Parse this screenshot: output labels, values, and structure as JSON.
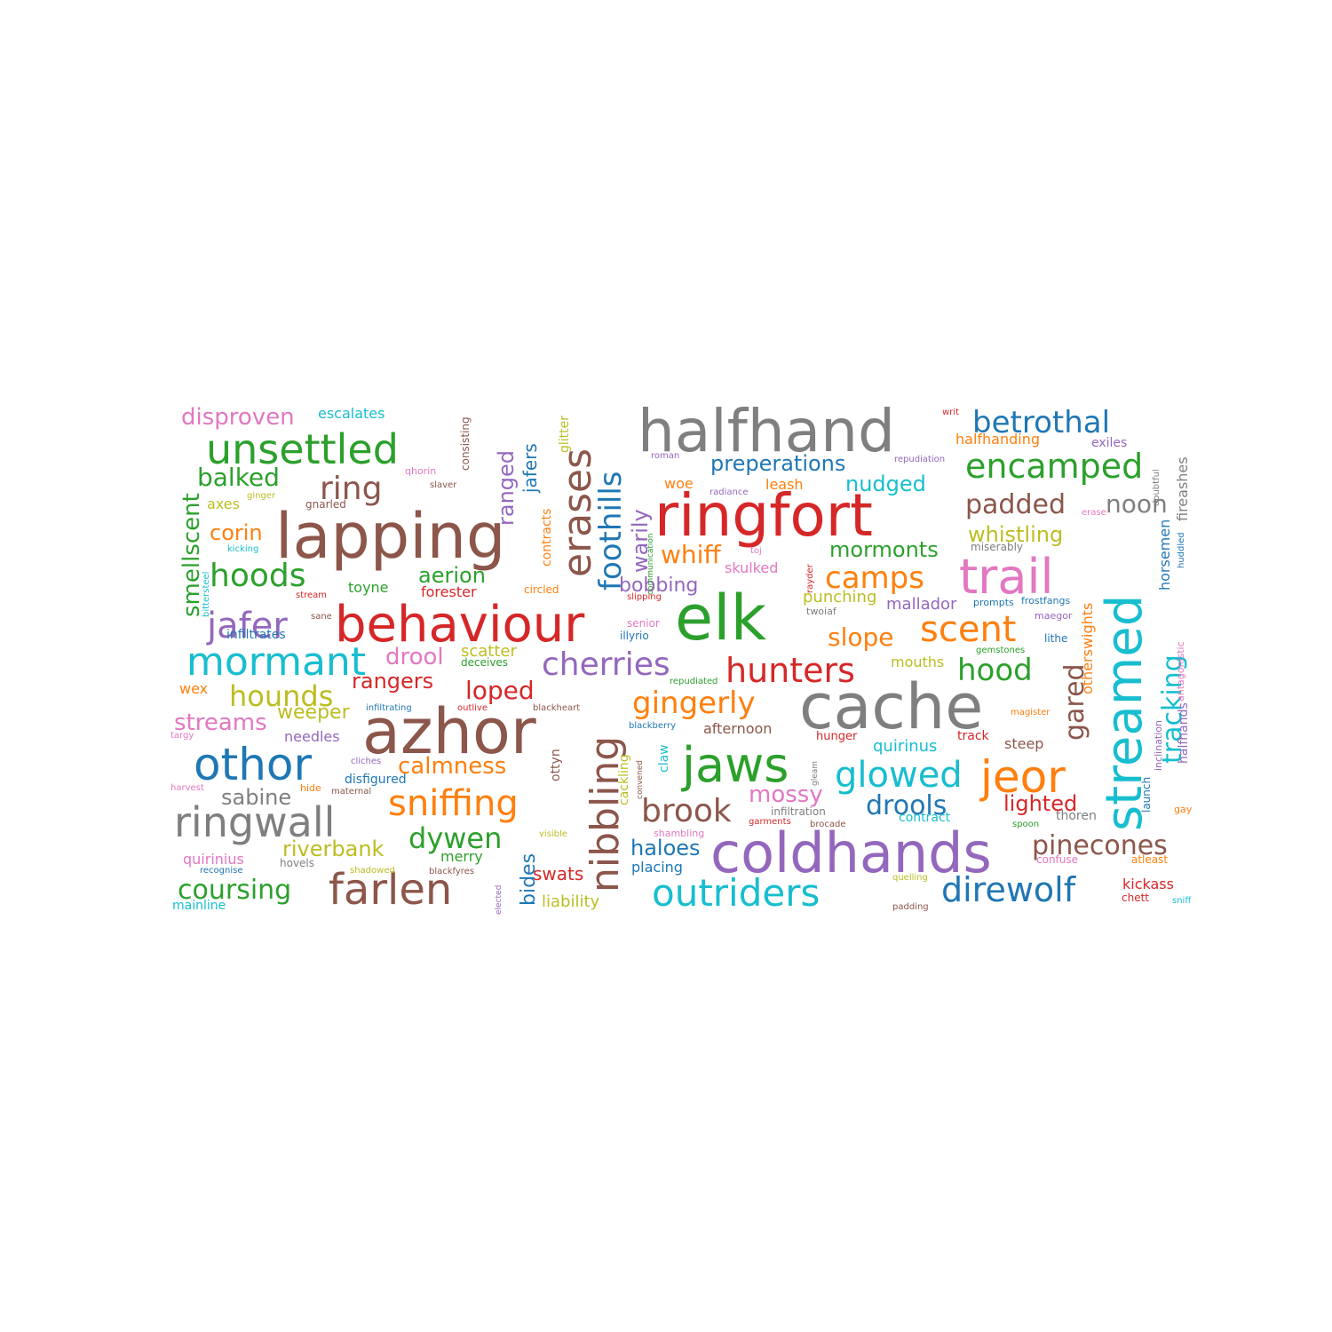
{
  "palette": {
    "blue": "#1f77b4",
    "orange": "#ff7f0e",
    "green": "#2ca02c",
    "red": "#d62728",
    "purple": "#9467bd",
    "brown": "#8c564b",
    "pink": "#e377c2",
    "gray": "#7f7f7f",
    "olive": "#bcbd22",
    "cyan": "#17becf"
  },
  "words": [
    {
      "text": "halfhand",
      "color": "gray"
    },
    {
      "text": "cache",
      "color": "gray"
    },
    {
      "text": "ringfort",
      "color": "red"
    },
    {
      "text": "azhor",
      "color": "brown"
    },
    {
      "text": "lapping",
      "color": "brown"
    },
    {
      "text": "elk",
      "color": "green"
    },
    {
      "text": "coldhands",
      "color": "purple"
    },
    {
      "text": "behaviour",
      "color": "red"
    },
    {
      "text": "streamed",
      "color": "cyan"
    },
    {
      "text": "unsettled",
      "color": "green"
    },
    {
      "text": "trail",
      "color": "pink"
    },
    {
      "text": "jaws",
      "color": "green"
    },
    {
      "text": "othor",
      "color": "blue"
    },
    {
      "text": "ringwall",
      "color": "gray"
    },
    {
      "text": "farlen",
      "color": "brown"
    },
    {
      "text": "outriders",
      "color": "cyan"
    },
    {
      "text": "mormant",
      "color": "cyan"
    },
    {
      "text": "erases",
      "color": "brown"
    },
    {
      "text": "nibbling",
      "color": "brown"
    },
    {
      "text": "jeor",
      "color": "orange"
    },
    {
      "text": "encamped",
      "color": "green"
    },
    {
      "text": "betrothal",
      "color": "blue"
    },
    {
      "text": "direwolf",
      "color": "blue"
    },
    {
      "text": "sniffing",
      "color": "orange"
    },
    {
      "text": "cherries",
      "color": "purple"
    },
    {
      "text": "hunters",
      "color": "red"
    },
    {
      "text": "foothills",
      "color": "blue"
    },
    {
      "text": "tracking",
      "color": "cyan"
    },
    {
      "text": "glowed",
      "color": "cyan"
    },
    {
      "text": "jafer",
      "color": "purple"
    },
    {
      "text": "hoods",
      "color": "green"
    },
    {
      "text": "scent",
      "color": "orange"
    },
    {
      "text": "brook",
      "color": "brown"
    },
    {
      "text": "pinecones",
      "color": "brown"
    },
    {
      "text": "gingerly",
      "color": "orange"
    },
    {
      "text": "hounds",
      "color": "olive"
    },
    {
      "text": "disproven",
      "color": "pink"
    },
    {
      "text": "ring",
      "color": "brown"
    },
    {
      "text": "camps",
      "color": "orange"
    },
    {
      "text": "hood",
      "color": "green"
    },
    {
      "text": "dywen",
      "color": "green"
    },
    {
      "text": "coursing",
      "color": "green"
    },
    {
      "text": "smellscent",
      "color": "green"
    },
    {
      "text": "balked",
      "color": "green"
    },
    {
      "text": "preperations",
      "color": "blue"
    },
    {
      "text": "padded",
      "color": "brown"
    },
    {
      "text": "noon",
      "color": "gray"
    },
    {
      "text": "drools",
      "color": "blue"
    },
    {
      "text": "slope",
      "color": "orange"
    },
    {
      "text": "gared",
      "color": "brown"
    },
    {
      "text": "ranged",
      "color": "purple"
    },
    {
      "text": "warily",
      "color": "purple"
    },
    {
      "text": "whistling",
      "color": "olive"
    },
    {
      "text": "mormonts",
      "color": "green"
    },
    {
      "text": "streams",
      "color": "pink"
    },
    {
      "text": "loped",
      "color": "red"
    },
    {
      "text": "nudged",
      "color": "cyan"
    },
    {
      "text": "whiff",
      "color": "orange"
    },
    {
      "text": "sabine",
      "color": "gray"
    },
    {
      "text": "riverbank",
      "color": "olive"
    },
    {
      "text": "calmness",
      "color": "orange"
    },
    {
      "text": "mossy",
      "color": "pink"
    },
    {
      "text": "lighted",
      "color": "red"
    },
    {
      "text": "aerion",
      "color": "green"
    },
    {
      "text": "bobbing",
      "color": "purple"
    },
    {
      "text": "drool",
      "color": "pink"
    },
    {
      "text": "rangers",
      "color": "red"
    },
    {
      "text": "haloes",
      "color": "blue"
    },
    {
      "text": "corin",
      "color": "orange"
    },
    {
      "text": "jafers",
      "color": "blue"
    },
    {
      "text": "bides",
      "color": "blue"
    },
    {
      "text": "weeper",
      "color": "olive"
    },
    {
      "text": "merry",
      "color": "green"
    },
    {
      "text": "swats",
      "color": "red"
    },
    {
      "text": "escalates",
      "color": "cyan"
    },
    {
      "text": "quirinius",
      "color": "pink"
    },
    {
      "text": "mallador",
      "color": "purple"
    },
    {
      "text": "punching",
      "color": "olive"
    },
    {
      "text": "mouths",
      "color": "olive"
    },
    {
      "text": "quirinus",
      "color": "cyan"
    },
    {
      "text": "placing",
      "color": "blue"
    },
    {
      "text": "liability",
      "color": "olive"
    },
    {
      "text": "afternoon",
      "color": "brown"
    },
    {
      "text": "needles",
      "color": "purple"
    },
    {
      "text": "scatter",
      "color": "olive"
    },
    {
      "text": "forester",
      "color": "red"
    },
    {
      "text": "toyne",
      "color": "green"
    },
    {
      "text": "axes",
      "color": "olive"
    },
    {
      "text": "leash",
      "color": "orange"
    },
    {
      "text": "woe",
      "color": "orange"
    },
    {
      "text": "steep",
      "color": "brown"
    },
    {
      "text": "kickass",
      "color": "red"
    },
    {
      "text": "exiles",
      "color": "purple"
    },
    {
      "text": "halfhanding",
      "color": "orange"
    },
    {
      "text": "horsemen",
      "color": "blue"
    },
    {
      "text": "halfhands",
      "color": "purple"
    },
    {
      "text": "otherswights",
      "color": "orange"
    },
    {
      "text": "fireashes",
      "color": "gray"
    },
    {
      "text": "skulked",
      "color": "pink"
    },
    {
      "text": "wex",
      "color": "orange"
    },
    {
      "text": "infiltrates",
      "color": "blue"
    },
    {
      "text": "disfigured",
      "color": "blue"
    },
    {
      "text": "mainline",
      "color": "cyan"
    },
    {
      "text": "hovels",
      "color": "gray"
    },
    {
      "text": "gnarled",
      "color": "brown"
    },
    {
      "text": "contracts",
      "color": "orange"
    },
    {
      "text": "glitter",
      "color": "olive"
    },
    {
      "text": "consisting",
      "color": "brown"
    },
    {
      "text": "ottyn",
      "color": "brown"
    },
    {
      "text": "claw",
      "color": "cyan"
    },
    {
      "text": "cackling",
      "color": "olive"
    },
    {
      "text": "deceives",
      "color": "green"
    },
    {
      "text": "circled",
      "color": "orange"
    },
    {
      "text": "track",
      "color": "red"
    },
    {
      "text": "thoren",
      "color": "gray"
    },
    {
      "text": "confuse",
      "color": "pink"
    },
    {
      "text": "atleast",
      "color": "orange"
    },
    {
      "text": "chett",
      "color": "red"
    },
    {
      "text": "contract",
      "color": "cyan"
    },
    {
      "text": "infiltration",
      "color": "gray"
    },
    {
      "text": "shambling",
      "color": "pink"
    },
    {
      "text": "hunger",
      "color": "red"
    },
    {
      "text": "senior",
      "color": "pink"
    },
    {
      "text": "illyrio",
      "color": "blue"
    },
    {
      "text": "twoiaf",
      "color": "gray"
    },
    {
      "text": "maegor",
      "color": "purple"
    },
    {
      "text": "lithe",
      "color": "blue"
    },
    {
      "text": "prompts",
      "color": "blue"
    },
    {
      "text": "frostfangs",
      "color": "blue"
    },
    {
      "text": "miserably",
      "color": "gray"
    },
    {
      "text": "doubtful",
      "color": "gray"
    },
    {
      "text": "huddled",
      "color": "blue"
    },
    {
      "text": "antagonistic",
      "color": "pink"
    },
    {
      "text": "inclination",
      "color": "purple"
    },
    {
      "text": "launch",
      "color": "blue"
    },
    {
      "text": "gay",
      "color": "orange"
    },
    {
      "text": "sniff",
      "color": "cyan"
    },
    {
      "text": "writ",
      "color": "red"
    },
    {
      "text": "roman",
      "color": "purple"
    },
    {
      "text": "radiance",
      "color": "purple"
    },
    {
      "text": "repudiation",
      "color": "purple"
    },
    {
      "text": "erase",
      "color": "pink"
    },
    {
      "text": "qhorin",
      "color": "pink"
    },
    {
      "text": "slaver",
      "color": "brown"
    },
    {
      "text": "ginger",
      "color": "olive"
    },
    {
      "text": "kicking",
      "color": "cyan"
    },
    {
      "text": "stream",
      "color": "red"
    },
    {
      "text": "sane",
      "color": "brown"
    },
    {
      "text": "bittersteel",
      "color": "cyan"
    },
    {
      "text": "infiltrating",
      "color": "blue"
    },
    {
      "text": "outlive",
      "color": "red"
    },
    {
      "text": "blackheart",
      "color": "brown"
    },
    {
      "text": "blackberry",
      "color": "blue"
    },
    {
      "text": "repudiated",
      "color": "green"
    },
    {
      "text": "targy",
      "color": "pink"
    },
    {
      "text": "cliches",
      "color": "purple"
    },
    {
      "text": "harvest",
      "color": "pink"
    },
    {
      "text": "hide",
      "color": "orange"
    },
    {
      "text": "maternal",
      "color": "brown"
    },
    {
      "text": "recognise",
      "color": "blue"
    },
    {
      "text": "shadowed",
      "color": "olive"
    },
    {
      "text": "blackfyres",
      "color": "brown"
    },
    {
      "text": "elected",
      "color": "purple"
    },
    {
      "text": "visible",
      "color": "olive"
    },
    {
      "text": "convened",
      "color": "brown"
    },
    {
      "text": "garments",
      "color": "red"
    },
    {
      "text": "brocade",
      "color": "brown"
    },
    {
      "text": "toj",
      "color": "pink"
    },
    {
      "text": "rayder",
      "color": "red"
    },
    {
      "text": "gleam",
      "color": "gray"
    },
    {
      "text": "slipping",
      "color": "red"
    },
    {
      "text": "communication",
      "color": "green"
    },
    {
      "text": "magister",
      "color": "orange"
    },
    {
      "text": "gemstones",
      "color": "green"
    },
    {
      "text": "spoon",
      "color": "green"
    },
    {
      "text": "quelling",
      "color": "olive"
    },
    {
      "text": "padding",
      "color": "brown"
    }
  ]
}
